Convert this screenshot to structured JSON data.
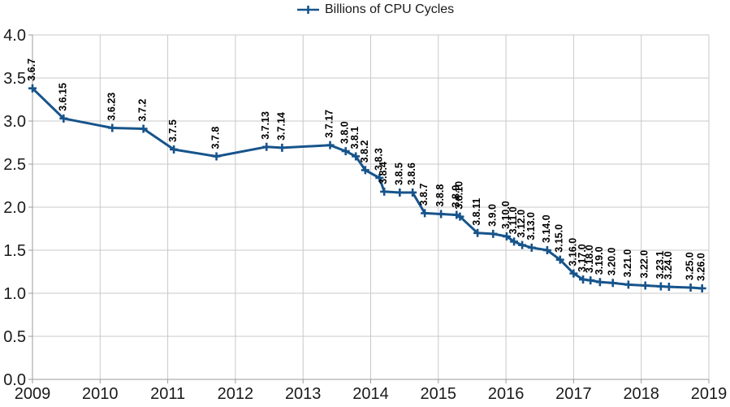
{
  "chart": {
    "legend_label": "Billions of CPU Cycles",
    "series_color": "#17548b",
    "grid_color": "#c9c9c9",
    "axis_color": "#9b9b9b",
    "text_color": "#1a1a1a",
    "background_color": "#ffffff"
  },
  "chart_data": {
    "type": "line",
    "title": "",
    "legend_position": "top-center",
    "legend_entries": [
      "Billions of CPU Cycles"
    ],
    "xlabel": "",
    "ylabel": "",
    "xlim": [
      2009,
      2019
    ],
    "ylim": [
      0.0,
      4.0
    ],
    "x_ticks": [
      2009,
      2010,
      2011,
      2012,
      2013,
      2014,
      2015,
      2016,
      2017,
      2018,
      2019
    ],
    "y_ticks": [
      0.0,
      0.5,
      1.0,
      1.5,
      2.0,
      2.5,
      3.0,
      3.5,
      4.0
    ],
    "grid": true,
    "marker": "plus",
    "point_labels_rotated_90": true,
    "series": [
      {
        "name": "Billions of CPU Cycles",
        "points": [
          {
            "label": "3.6.7",
            "x": 2009.0,
            "y": 3.38
          },
          {
            "label": "3.6.15",
            "x": 2009.46,
            "y": 3.03
          },
          {
            "label": "3.6.23",
            "x": 2010.18,
            "y": 2.92
          },
          {
            "label": "3.7.2",
            "x": 2010.64,
            "y": 2.91
          },
          {
            "label": "3.7.5",
            "x": 2011.09,
            "y": 2.67
          },
          {
            "label": "3.7.8",
            "x": 2011.72,
            "y": 2.59
          },
          {
            "label": "3.7.13",
            "x": 2012.46,
            "y": 2.7
          },
          {
            "label": "3.7.14",
            "x": 2012.69,
            "y": 2.69
          },
          {
            "label": "3.7.17",
            "x": 2013.4,
            "y": 2.72
          },
          {
            "label": "3.8.0",
            "x": 2013.63,
            "y": 2.65
          },
          {
            "label": "3.8.1",
            "x": 2013.78,
            "y": 2.59
          },
          {
            "label": "3.8.2",
            "x": 2013.92,
            "y": 2.43
          },
          {
            "label": "3.8.3",
            "x": 2014.13,
            "y": 2.34
          },
          {
            "label": "3.8.4",
            "x": 2014.2,
            "y": 2.18
          },
          {
            "label": "3.8.5",
            "x": 2014.43,
            "y": 2.17
          },
          {
            "label": "3.8.6",
            "x": 2014.62,
            "y": 2.17
          },
          {
            "label": "3.8.7",
            "x": 2014.8,
            "y": 1.93
          },
          {
            "label": "3.8.8",
            "x": 2015.04,
            "y": 1.92
          },
          {
            "label": "3.8.9",
            "x": 2015.27,
            "y": 1.91
          },
          {
            "label": "3.8.10",
            "x": 2015.32,
            "y": 1.89
          },
          {
            "label": "3.8.11",
            "x": 2015.58,
            "y": 1.7
          },
          {
            "label": "3.9.0",
            "x": 2015.81,
            "y": 1.69
          },
          {
            "label": "3.10.0",
            "x": 2016.01,
            "y": 1.66
          },
          {
            "label": "3.11.0",
            "x": 2016.12,
            "y": 1.6
          },
          {
            "label": "3.12.0",
            "x": 2016.24,
            "y": 1.56
          },
          {
            "label": "3.13.0",
            "x": 2016.38,
            "y": 1.53
          },
          {
            "label": "3.14.0",
            "x": 2016.61,
            "y": 1.5
          },
          {
            "label": "3.15.0",
            "x": 2016.8,
            "y": 1.39
          },
          {
            "label": "3.16.0",
            "x": 2017.0,
            "y": 1.23
          },
          {
            "label": "3.17.0",
            "x": 2017.14,
            "y": 1.16
          },
          {
            "label": "3.18.0",
            "x": 2017.25,
            "y": 1.15
          },
          {
            "label": "3.19.0",
            "x": 2017.39,
            "y": 1.13
          },
          {
            "label": "3.20.0",
            "x": 2017.58,
            "y": 1.12
          },
          {
            "label": "3.21.0",
            "x": 2017.81,
            "y": 1.1
          },
          {
            "label": "3.22.0",
            "x": 2018.06,
            "y": 1.09
          },
          {
            "label": "3.23.1",
            "x": 2018.29,
            "y": 1.08
          },
          {
            "label": "3.24.0",
            "x": 2018.41,
            "y": 1.075
          },
          {
            "label": "3.25.0",
            "x": 2018.73,
            "y": 1.066
          },
          {
            "label": "3.26.0",
            "x": 2018.9,
            "y": 1.057
          }
        ]
      }
    ]
  }
}
